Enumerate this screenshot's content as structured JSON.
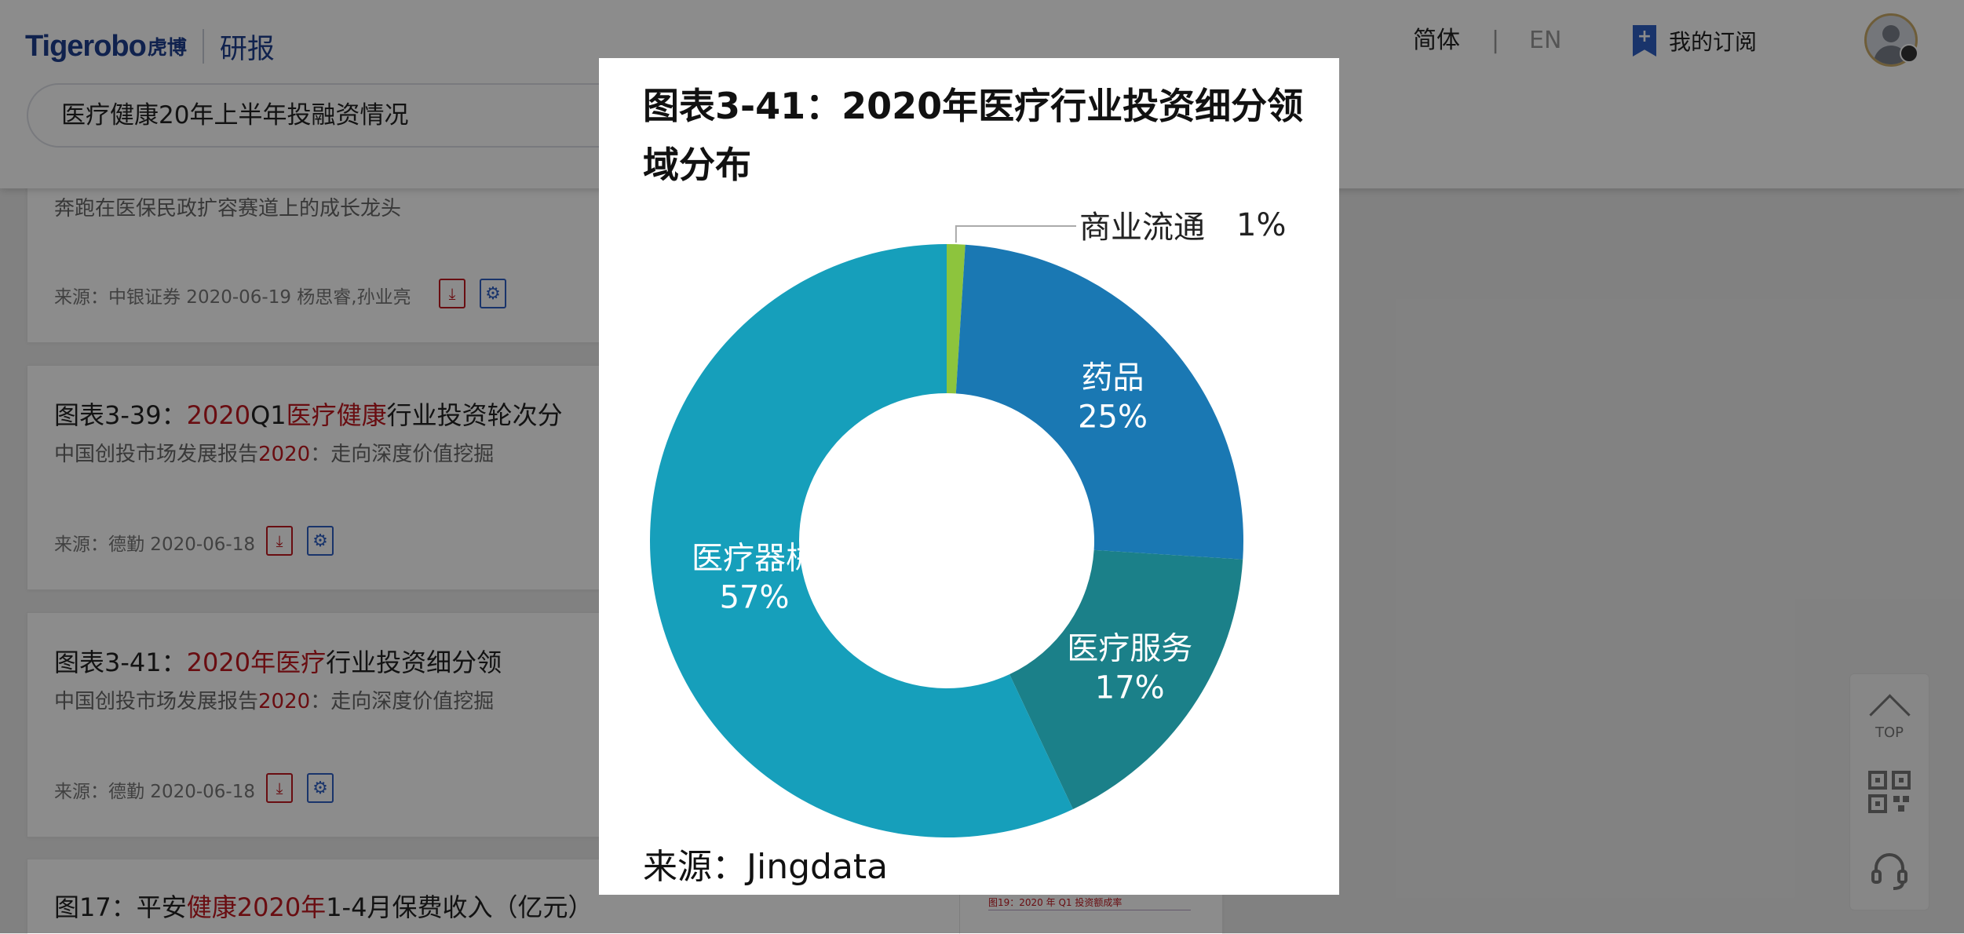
{
  "header": {
    "logo_text": "Tigerobo",
    "logo_cn": "虎博",
    "section": "研报",
    "lang_cn": "简体",
    "lang_sep": "|",
    "lang_en": "EN",
    "subscribe_label": "我的订阅"
  },
  "search": {
    "query": "医疗健康20年上半年投融资情况"
  },
  "results": [
    {
      "subtitle": "奔跑在医保民政扩容赛道上的成长龙头",
      "meta": "来源：中银证券 2020-06-19   杨思睿,孙业亮"
    },
    {
      "title_parts": [
        {
          "text": "图表3-39：",
          "hl": false
        },
        {
          "text": "2020",
          "hl": true
        },
        {
          "text": "Q1",
          "hl": false
        },
        {
          "text": "医疗健康",
          "hl": true
        },
        {
          "text": "行业投资轮次分",
          "hl": false
        }
      ],
      "sub_parts": [
        {
          "text": "中国创投市场发展报告",
          "hl": false
        },
        {
          "text": "2020",
          "hl": true
        },
        {
          "text": "：走向深度价值挖掘",
          "hl": false
        }
      ],
      "meta": "来源：德勤 2020-06-18"
    },
    {
      "title_parts": [
        {
          "text": "图表3-41：",
          "hl": false
        },
        {
          "text": "2020年医疗",
          "hl": true
        },
        {
          "text": "行业投资细分领",
          "hl": false
        }
      ],
      "sub_parts": [
        {
          "text": "中国创投市场发展报告",
          "hl": false
        },
        {
          "text": "2020",
          "hl": true
        },
        {
          "text": "：走向深度价值挖掘",
          "hl": false
        }
      ],
      "meta": "来源：德勤 2020-06-18"
    },
    {
      "title_parts": [
        {
          "text": "图17：平安",
          "hl": false
        },
        {
          "text": "健康2020年",
          "hl": true
        },
        {
          "text": "1-4月保费收入（亿元）",
          "hl": false
        }
      ],
      "thumb_caption": "图19：2020 年 Q1 投资额成率"
    }
  ],
  "floatbar": {
    "top_label": "TOP"
  },
  "modal": {
    "title": "图表3-41：2020年医疗行业投资细分领域分布",
    "source": "来源：Jingdata"
  },
  "chart_data": {
    "type": "pie",
    "title": "图表3-41：2020年医疗行业投资细分领域分布",
    "donut": true,
    "categories": [
      "商业流通",
      "药品",
      "医疗服务",
      "医疗器械"
    ],
    "values": [
      1,
      25,
      17,
      57
    ],
    "labels": [
      "1%",
      "25%",
      "17%",
      "57%"
    ],
    "colors": [
      "#8dc43d",
      "#1a78b3",
      "#1b8089",
      "#169fbb"
    ],
    "source": "来源：Jingdata"
  }
}
